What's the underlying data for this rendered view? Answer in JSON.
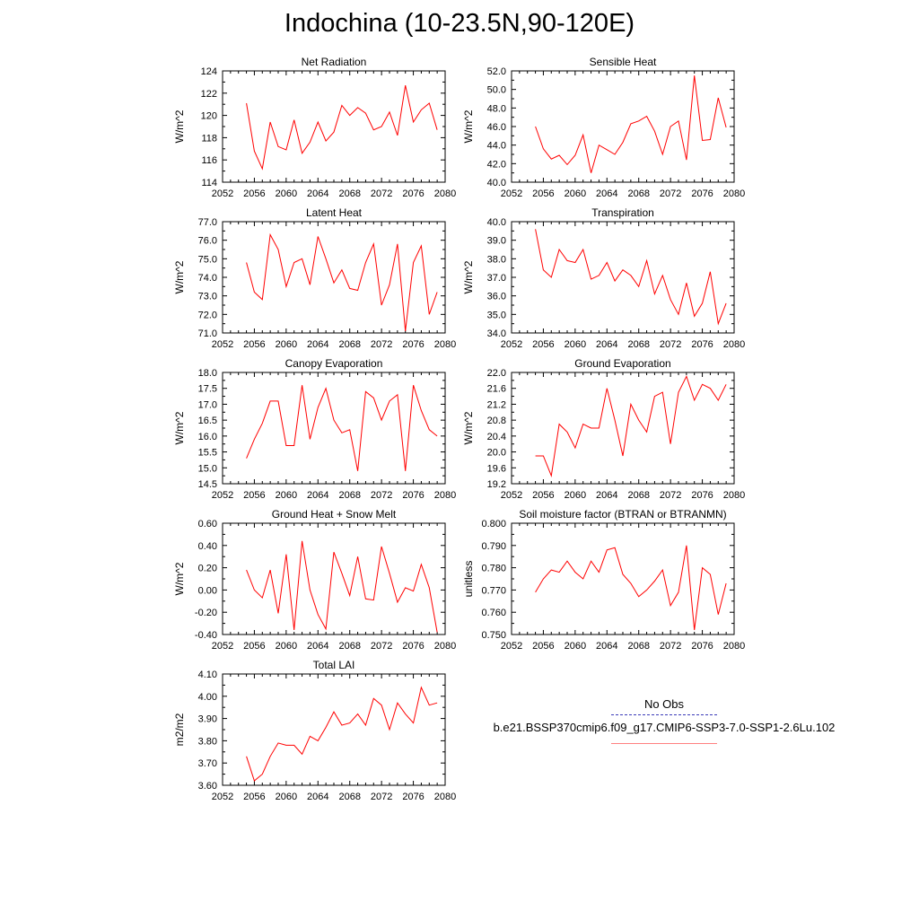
{
  "title": "Indochina (10-23.5N,90-120E)",
  "legend": {
    "entries": [
      {
        "label": "No Obs",
        "color": "#3b3bb8",
        "style": "dashed"
      },
      {
        "label": "b.e21.BSSP370cmip6.f09_g17.CMIP6-SSP3-7.0-SSP1-2.6Lu.102",
        "color": "#ff0000",
        "style": "solid"
      }
    ]
  },
  "chart_data": [
    {
      "type": "line",
      "title": "Net Radiation",
      "xlabel": "",
      "ylabel": "W/m^2",
      "xlim": [
        2052,
        2080
      ],
      "ylim": [
        114,
        124
      ],
      "xticks": [
        2052,
        2056,
        2060,
        2064,
        2068,
        2072,
        2076,
        2080
      ],
      "yticks": [
        114,
        116,
        118,
        120,
        122,
        124
      ],
      "ydecimals": 0,
      "series": [
        {
          "color": "#ff0000",
          "x": [
            2055,
            2056,
            2057,
            2058,
            2059,
            2060,
            2061,
            2062,
            2063,
            2064,
            2065,
            2066,
            2067,
            2068,
            2069,
            2070,
            2071,
            2072,
            2073,
            2074,
            2075,
            2076,
            2077,
            2078,
            2079
          ],
          "y": [
            121.1,
            116.8,
            115.2,
            119.4,
            117.2,
            116.9,
            119.6,
            116.6,
            117.6,
            119.4,
            117.7,
            118.5,
            120.9,
            120.0,
            120.7,
            120.2,
            118.7,
            119.0,
            120.3,
            118.2,
            122.7,
            119.4,
            120.5,
            121.1,
            118.7
          ]
        }
      ]
    },
    {
      "type": "line",
      "title": "Sensible Heat",
      "xlabel": "",
      "ylabel": "W/m^2",
      "xlim": [
        2052,
        2080
      ],
      "ylim": [
        40.0,
        52.0
      ],
      "xticks": [
        2052,
        2056,
        2060,
        2064,
        2068,
        2072,
        2076,
        2080
      ],
      "yticks": [
        40.0,
        42.0,
        44.0,
        46.0,
        48.0,
        50.0,
        52.0
      ],
      "ydecimals": 1,
      "series": [
        {
          "color": "#ff0000",
          "x": [
            2055,
            2056,
            2057,
            2058,
            2059,
            2060,
            2061,
            2062,
            2063,
            2064,
            2065,
            2066,
            2067,
            2068,
            2069,
            2070,
            2071,
            2072,
            2073,
            2074,
            2075,
            2076,
            2077,
            2078,
            2079
          ],
          "y": [
            46.0,
            43.6,
            42.5,
            42.9,
            41.9,
            42.9,
            45.1,
            41.0,
            44.0,
            43.5,
            43.0,
            44.3,
            46.3,
            46.6,
            47.1,
            45.5,
            43.0,
            46.0,
            46.6,
            42.4,
            51.5,
            44.5,
            44.6,
            49.1,
            45.9
          ]
        }
      ]
    },
    {
      "type": "line",
      "title": "Latent Heat",
      "xlabel": "",
      "ylabel": "W/m^2",
      "xlim": [
        2052,
        2080
      ],
      "ylim": [
        71.0,
        77.0
      ],
      "xticks": [
        2052,
        2056,
        2060,
        2064,
        2068,
        2072,
        2076,
        2080
      ],
      "yticks": [
        71.0,
        72.0,
        73.0,
        74.0,
        75.0,
        76.0,
        77.0
      ],
      "ydecimals": 1,
      "series": [
        {
          "color": "#ff0000",
          "x": [
            2055,
            2056,
            2057,
            2058,
            2059,
            2060,
            2061,
            2062,
            2063,
            2064,
            2065,
            2066,
            2067,
            2068,
            2069,
            2070,
            2071,
            2072,
            2073,
            2074,
            2075,
            2076,
            2077,
            2078,
            2079
          ],
          "y": [
            74.8,
            73.2,
            72.8,
            76.3,
            75.5,
            73.5,
            74.8,
            75.0,
            73.6,
            76.2,
            75.0,
            73.7,
            74.4,
            73.4,
            73.3,
            74.8,
            75.8,
            72.5,
            73.6,
            75.8,
            71.1,
            74.8,
            75.7,
            72.0,
            73.2
          ]
        }
      ]
    },
    {
      "type": "line",
      "title": "Transpiration",
      "xlabel": "",
      "ylabel": "W/m^2",
      "xlim": [
        2052,
        2080
      ],
      "ylim": [
        34.0,
        40.0
      ],
      "xticks": [
        2052,
        2056,
        2060,
        2064,
        2068,
        2072,
        2076,
        2080
      ],
      "yticks": [
        34.0,
        35.0,
        36.0,
        37.0,
        38.0,
        39.0,
        40.0
      ],
      "ydecimals": 1,
      "series": [
        {
          "color": "#ff0000",
          "x": [
            2055,
            2056,
            2057,
            2058,
            2059,
            2060,
            2061,
            2062,
            2063,
            2064,
            2065,
            2066,
            2067,
            2068,
            2069,
            2070,
            2071,
            2072,
            2073,
            2074,
            2075,
            2076,
            2077,
            2078,
            2079
          ],
          "y": [
            39.6,
            37.4,
            37.0,
            38.5,
            37.9,
            37.8,
            38.5,
            36.9,
            37.1,
            37.8,
            36.8,
            37.4,
            37.1,
            36.5,
            37.9,
            36.1,
            37.1,
            35.8,
            35.0,
            36.7,
            34.9,
            35.6,
            37.3,
            34.5,
            35.6
          ]
        }
      ]
    },
    {
      "type": "line",
      "title": "Canopy Evaporation",
      "xlabel": "",
      "ylabel": "W/m^2",
      "xlim": [
        2052,
        2080
      ],
      "ylim": [
        14.5,
        18.0
      ],
      "xticks": [
        2052,
        2056,
        2060,
        2064,
        2068,
        2072,
        2076,
        2080
      ],
      "yticks": [
        14.5,
        15.0,
        15.5,
        16.0,
        16.5,
        17.0,
        17.5,
        18.0
      ],
      "ydecimals": 1,
      "series": [
        {
          "color": "#ff0000",
          "x": [
            2055,
            2056,
            2057,
            2058,
            2059,
            2060,
            2061,
            2062,
            2063,
            2064,
            2065,
            2066,
            2067,
            2068,
            2069,
            2070,
            2071,
            2072,
            2073,
            2074,
            2075,
            2076,
            2077,
            2078,
            2079
          ],
          "y": [
            15.3,
            15.9,
            16.4,
            17.1,
            17.1,
            15.7,
            15.7,
            17.6,
            15.9,
            16.9,
            17.5,
            16.5,
            16.1,
            16.2,
            14.9,
            17.4,
            17.2,
            16.5,
            17.1,
            17.3,
            14.9,
            17.6,
            16.8,
            16.2,
            16.0
          ]
        }
      ]
    },
    {
      "type": "line",
      "title": "Ground Evaporation",
      "xlabel": "",
      "ylabel": "W/m^2",
      "xlim": [
        2052,
        2080
      ],
      "ylim": [
        19.2,
        22.0
      ],
      "xticks": [
        2052,
        2056,
        2060,
        2064,
        2068,
        2072,
        2076,
        2080
      ],
      "yticks": [
        19.2,
        19.6,
        20.0,
        20.4,
        20.8,
        21.2,
        21.6,
        22.0
      ],
      "ydecimals": 1,
      "series": [
        {
          "color": "#ff0000",
          "x": [
            2055,
            2056,
            2057,
            2058,
            2059,
            2060,
            2061,
            2062,
            2063,
            2064,
            2065,
            2066,
            2067,
            2068,
            2069,
            2070,
            2071,
            2072,
            2073,
            2074,
            2075,
            2076,
            2077,
            2078,
            2079
          ],
          "y": [
            19.9,
            19.9,
            19.4,
            20.7,
            20.5,
            20.1,
            20.7,
            20.6,
            20.6,
            21.6,
            20.8,
            19.9,
            21.2,
            20.8,
            20.5,
            21.4,
            21.5,
            20.2,
            21.5,
            21.9,
            21.3,
            21.7,
            21.6,
            21.3,
            21.7
          ]
        }
      ]
    },
    {
      "type": "line",
      "title": "Ground Heat + Snow Melt",
      "xlabel": "",
      "ylabel": "W/m^2",
      "xlim": [
        2052,
        2080
      ],
      "ylim": [
        -0.4,
        0.6
      ],
      "xticks": [
        2052,
        2056,
        2060,
        2064,
        2068,
        2072,
        2076,
        2080
      ],
      "yticks": [
        -0.4,
        -0.2,
        0.0,
        0.2,
        0.4,
        0.6
      ],
      "ydecimals": 2,
      "series": [
        {
          "color": "#ff0000",
          "x": [
            2055,
            2056,
            2057,
            2058,
            2059,
            2060,
            2061,
            2062,
            2063,
            2064,
            2065,
            2066,
            2067,
            2068,
            2069,
            2070,
            2071,
            2072,
            2073,
            2074,
            2075,
            2076,
            2077,
            2078,
            2079
          ],
          "y": [
            0.18,
            0.0,
            -0.07,
            0.18,
            -0.21,
            0.32,
            -0.36,
            0.44,
            0.0,
            -0.22,
            -0.35,
            0.34,
            0.15,
            -0.05,
            0.3,
            -0.08,
            -0.09,
            0.39,
            0.15,
            -0.11,
            0.02,
            -0.01,
            0.23,
            0.02,
            -0.38
          ]
        }
      ]
    },
    {
      "type": "line",
      "title": "Soil moisture factor (BTRAN or BTRANMN)",
      "xlabel": "",
      "ylabel": "unitless",
      "xlim": [
        2052,
        2080
      ],
      "ylim": [
        0.75,
        0.8
      ],
      "xticks": [
        2052,
        2056,
        2060,
        2064,
        2068,
        2072,
        2076,
        2080
      ],
      "yticks": [
        0.75,
        0.76,
        0.77,
        0.78,
        0.79,
        0.8
      ],
      "ydecimals": 3,
      "series": [
        {
          "color": "#ff0000",
          "x": [
            2055,
            2056,
            2057,
            2058,
            2059,
            2060,
            2061,
            2062,
            2063,
            2064,
            2065,
            2066,
            2067,
            2068,
            2069,
            2070,
            2071,
            2072,
            2073,
            2074,
            2075,
            2076,
            2077,
            2078,
            2079
          ],
          "y": [
            0.769,
            0.775,
            0.779,
            0.778,
            0.783,
            0.778,
            0.775,
            0.783,
            0.778,
            0.788,
            0.789,
            0.777,
            0.773,
            0.767,
            0.77,
            0.774,
            0.779,
            0.763,
            0.769,
            0.79,
            0.752,
            0.78,
            0.777,
            0.759,
            0.773
          ]
        }
      ]
    },
    {
      "type": "line",
      "title": "Total LAI",
      "xlabel": "",
      "ylabel": "m2/m2",
      "xlim": [
        2052,
        2080
      ],
      "ylim": [
        3.6,
        4.1
      ],
      "xticks": [
        2052,
        2056,
        2060,
        2064,
        2068,
        2072,
        2076,
        2080
      ],
      "yticks": [
        3.6,
        3.7,
        3.8,
        3.9,
        4.0,
        4.1
      ],
      "ydecimals": 2,
      "series": [
        {
          "color": "#ff0000",
          "x": [
            2055,
            2056,
            2057,
            2058,
            2059,
            2060,
            2061,
            2062,
            2063,
            2064,
            2065,
            2066,
            2067,
            2068,
            2069,
            2070,
            2071,
            2072,
            2073,
            2074,
            2075,
            2076,
            2077,
            2078,
            2079
          ],
          "y": [
            3.73,
            3.62,
            3.65,
            3.73,
            3.79,
            3.78,
            3.78,
            3.74,
            3.82,
            3.8,
            3.86,
            3.93,
            3.87,
            3.88,
            3.92,
            3.87,
            3.99,
            3.96,
            3.85,
            3.97,
            3.92,
            3.88,
            4.04,
            3.96,
            3.97
          ]
        }
      ]
    }
  ]
}
